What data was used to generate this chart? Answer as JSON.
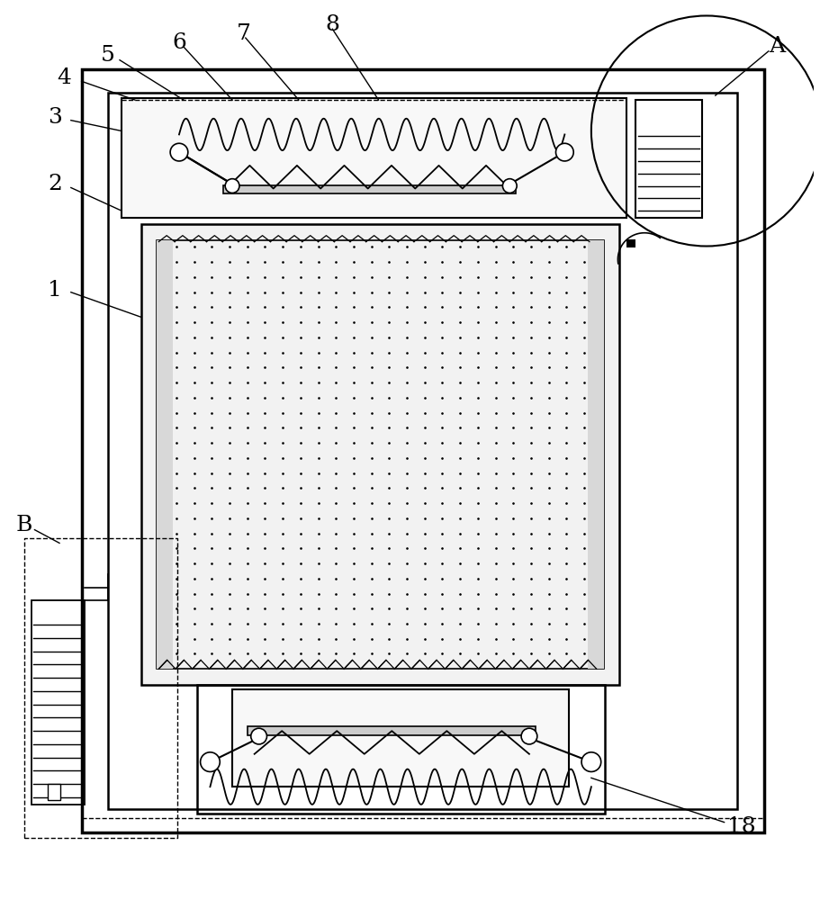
{
  "bg_color": "#ffffff",
  "line_color": "#000000",
  "fig_width": 9.11,
  "fig_height": 10.0
}
